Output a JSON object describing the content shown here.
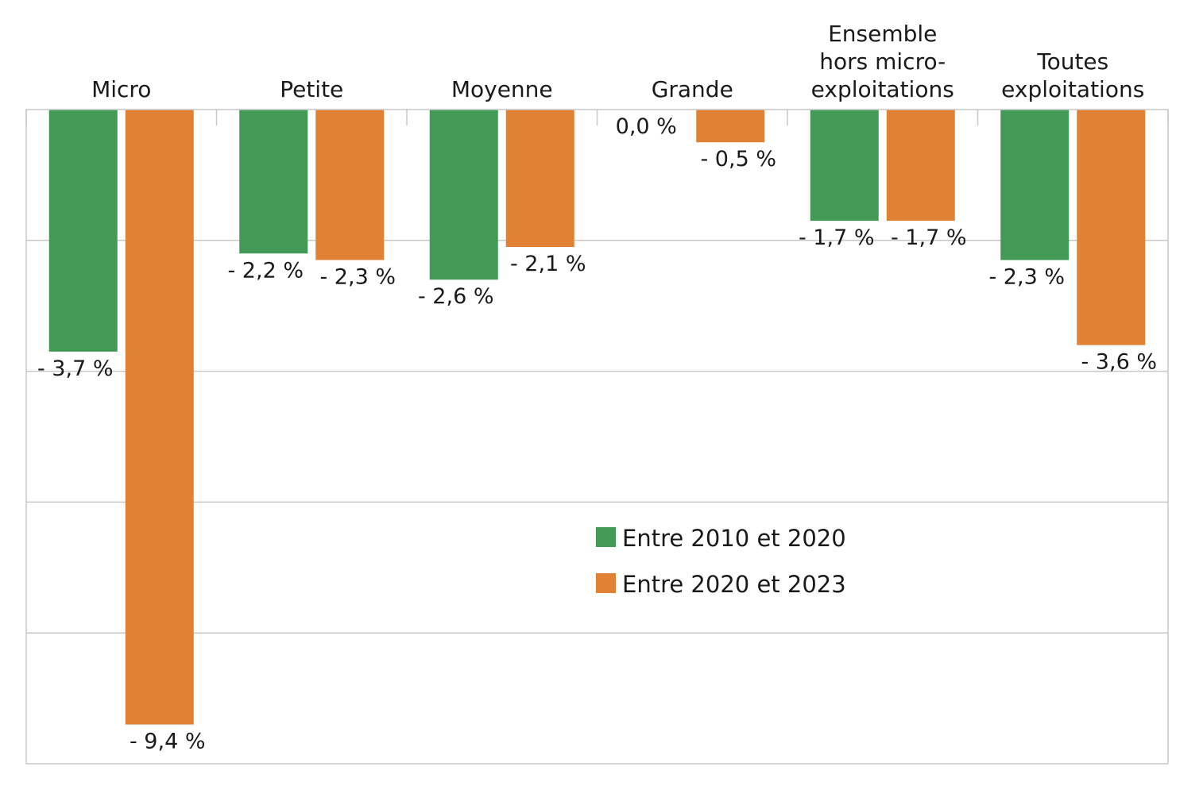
{
  "chart_data": {
    "type": "bar",
    "categories": [
      [
        "Micro"
      ],
      [
        "Petite"
      ],
      [
        "Moyenne"
      ],
      [
        "Grande"
      ],
      [
        "Ensemble",
        "hors micro-",
        "exploitations"
      ],
      [
        "Toutes",
        "exploitations"
      ]
    ],
    "series": [
      {
        "name": "Entre 2010 et 2020",
        "color": "#439a57",
        "values": [
          -3.7,
          -2.2,
          -2.6,
          0.0,
          -1.7,
          -2.3
        ],
        "labels": [
          "- 3,7 %",
          "- 2,2 %",
          "- 2,6 %",
          "0,0 %",
          "- 1,7 %",
          "- 2,3 %"
        ]
      },
      {
        "name": "Entre 2020 et 2023",
        "color": "#e08133",
        "values": [
          -9.4,
          -2.3,
          -2.1,
          -0.5,
          -1.7,
          -3.6
        ],
        "labels": [
          "- 9,4 %",
          "- 2,3 %",
          "- 2,1 %",
          "- 0,5 %",
          "- 1,7 %",
          "- 3,6 %"
        ]
      }
    ],
    "ylim": [
      -10,
      0
    ],
    "gridlines": [
      -2,
      -4,
      -6,
      -8
    ],
    "y_tick_labels_visible": false,
    "legend_position": "center-right",
    "title": "",
    "xlabel": "",
    "ylabel": ""
  }
}
